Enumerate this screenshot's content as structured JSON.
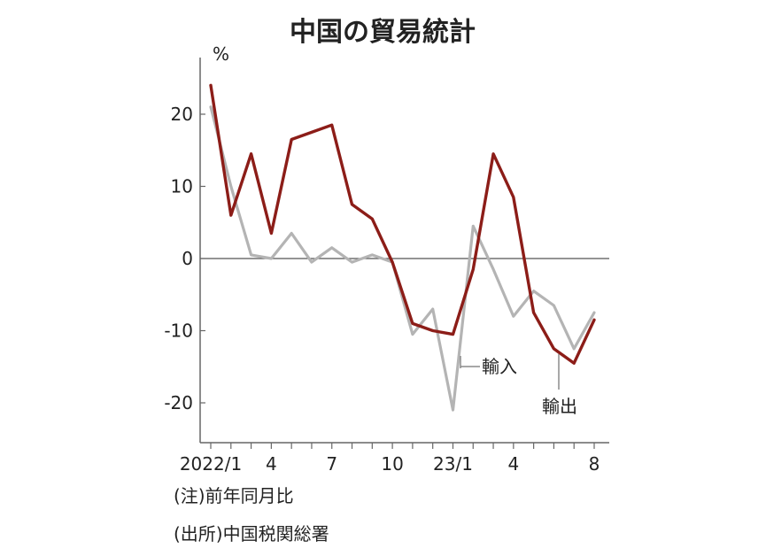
{
  "chart_data": {
    "type": "line",
    "title": "中国の貿易統計",
    "ylabel": "%",
    "ylim": [
      -25,
      27
    ],
    "yticks": [
      -20,
      -10,
      0,
      10,
      20
    ],
    "grid": false,
    "x_tick_labels": [
      {
        "index": 0,
        "label": "2022/1"
      },
      {
        "index": 3,
        "label": "4"
      },
      {
        "index": 6,
        "label": "7"
      },
      {
        "index": 9,
        "label": "10"
      },
      {
        "index": 12,
        "label": "23/1"
      },
      {
        "index": 15,
        "label": "4"
      },
      {
        "index": 19,
        "label": "8"
      }
    ],
    "x": [
      "2022/1",
      "2022/2",
      "2022/3",
      "2022/4",
      "2022/5",
      "2022/6",
      "2022/7",
      "2022/8",
      "2022/9",
      "2022/10",
      "2022/11",
      "2022/12",
      "2023/1",
      "2023/2",
      "2023/3",
      "2023/4",
      "2023/5",
      "2023/6",
      "2023/7",
      "2023/8"
    ],
    "series": [
      {
        "name": "輸入",
        "color": "#b4b4b4",
        "values": [
          21.0,
          10.0,
          0.5,
          0.0,
          3.5,
          -0.5,
          1.5,
          -0.5,
          0.5,
          -0.5,
          -10.5,
          -7.0,
          -21.0,
          4.5,
          -1.5,
          -8.0,
          -4.5,
          -6.5,
          -12.5,
          -7.5
        ]
      },
      {
        "name": "輸出",
        "color": "#8c1d18",
        "values": [
          24.0,
          6.0,
          14.5,
          3.5,
          16.5,
          17.5,
          18.5,
          7.5,
          5.5,
          -0.5,
          -9.0,
          -10.0,
          -10.5,
          -1.5,
          14.5,
          8.5,
          -7.5,
          -12.5,
          -14.5,
          -8.5
        ]
      }
    ],
    "annotations": {
      "import_label": "輸入",
      "export_label": "輸出"
    },
    "notes": [
      "(注)前年同月比",
      "(出所)中国税関総署"
    ]
  }
}
